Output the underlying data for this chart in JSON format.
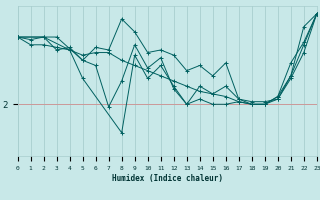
{
  "xlabel": "Humidex (Indice chaleur)",
  "bg_color": "#c8e8e8",
  "line_color": "#006060",
  "grid_color": "#a8cece",
  "ref_line_color": "#cc9999",
  "ytick_val": 2,
  "ytick_label": "2",
  "x_min": 0,
  "x_max": 23,
  "y_min": 1.0,
  "y_max": 3.9,
  "series": [
    {
      "x": [
        0,
        1,
        2,
        3,
        4,
        5,
        6,
        7,
        8,
        9,
        10,
        11,
        12,
        13,
        14,
        15,
        16,
        17,
        18,
        19,
        20,
        21,
        22,
        23
      ],
      "y": [
        3.3,
        3.15,
        3.15,
        3.1,
        3.05,
        2.95,
        3.0,
        3.0,
        2.85,
        2.75,
        2.65,
        2.55,
        2.45,
        2.35,
        2.25,
        2.2,
        2.15,
        2.05,
        2.0,
        2.0,
        2.1,
        2.55,
        3.5,
        3.75
      ]
    },
    {
      "x": [
        0,
        1,
        2,
        3,
        4,
        5,
        6,
        7,
        8,
        9,
        10,
        11,
        12,
        13,
        14,
        15,
        16,
        17,
        18,
        19,
        20,
        21,
        22,
        23
      ],
      "y": [
        3.3,
        3.25,
        3.3,
        3.05,
        3.1,
        2.85,
        3.1,
        3.05,
        3.65,
        3.4,
        3.0,
        3.05,
        2.95,
        2.65,
        2.75,
        2.55,
        2.8,
        2.1,
        2.0,
        2.0,
        2.15,
        2.8,
        3.2,
        3.75
      ]
    },
    {
      "x": [
        0,
        3,
        5,
        6,
        7,
        8,
        9,
        10,
        11,
        12,
        13,
        14,
        15,
        16,
        17,
        18,
        19,
        20,
        21,
        22,
        23
      ],
      "y": [
        3.3,
        3.3,
        2.85,
        2.75,
        1.95,
        2.45,
        3.15,
        2.7,
        2.9,
        2.3,
        2.0,
        2.35,
        2.2,
        2.35,
        2.1,
        2.05,
        2.05,
        2.1,
        2.5,
        3.0,
        3.75
      ]
    },
    {
      "x": [
        0,
        2,
        4,
        5,
        8,
        9,
        10,
        11,
        12,
        13,
        14,
        15,
        16,
        17,
        18,
        19,
        20,
        21,
        22,
        23
      ],
      "y": [
        3.3,
        3.3,
        3.05,
        2.5,
        1.45,
        2.95,
        2.5,
        2.75,
        2.35,
        2.0,
        2.1,
        2.0,
        2.0,
        2.05,
        2.0,
        2.0,
        2.15,
        2.55,
        3.15,
        3.75
      ]
    }
  ]
}
